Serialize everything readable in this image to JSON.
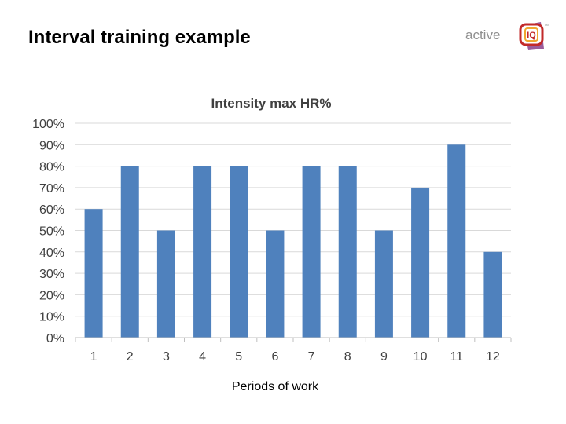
{
  "slide": {
    "title": "Interval training example"
  },
  "logo": {
    "text": "active",
    "mark_text": "IQ",
    "tm": "TM",
    "colors": {
      "text": "#8f8f8f",
      "ring": "#c22a2a",
      "accent": "#f0a830",
      "wing": "#8a3f8a"
    }
  },
  "chart_data": {
    "type": "bar",
    "title": "Intensity max HR%",
    "xlabel": "Periods of work",
    "ylabel": "",
    "categories": [
      "1",
      "2",
      "3",
      "4",
      "5",
      "6",
      "7",
      "8",
      "9",
      "10",
      "11",
      "12"
    ],
    "values": [
      60,
      80,
      50,
      80,
      80,
      50,
      80,
      80,
      50,
      70,
      90,
      40
    ],
    "ylim": [
      0,
      100
    ],
    "yticks": [
      0,
      10,
      20,
      30,
      40,
      50,
      60,
      70,
      80,
      90,
      100
    ],
    "ytick_labels": [
      "0%",
      "10%",
      "20%",
      "30%",
      "40%",
      "50%",
      "60%",
      "70%",
      "80%",
      "90%",
      "100%"
    ],
    "grid": true,
    "legend": "none",
    "colors": {
      "bar": "#4f81bd",
      "grid": "#d9d9d9",
      "axis": "#bfbfbf",
      "text": "#404040"
    }
  }
}
